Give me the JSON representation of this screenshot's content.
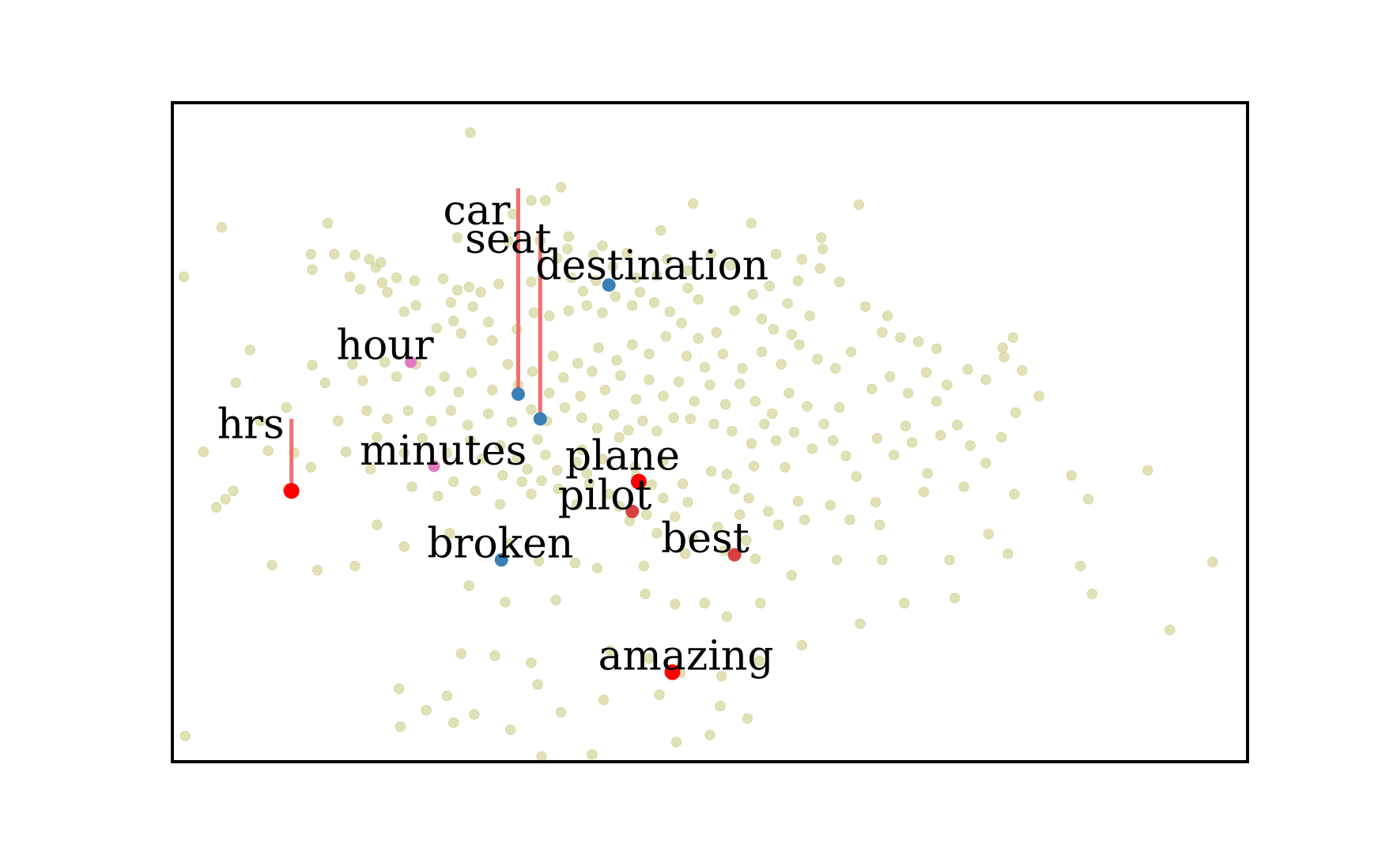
{
  "chart_data": {
    "type": "scatter",
    "title": "",
    "xlabel": "",
    "ylabel": "",
    "xlim": [
      -3.1,
      5.2
    ],
    "ylim": [
      -3.0,
      3.4
    ],
    "grid": false,
    "axes_ticks": false,
    "colors": {
      "background": "#c8c87a",
      "blue": "#3a7fb6",
      "pink": "#e07ac0",
      "red": "#ff0000",
      "darkred": "#d94040",
      "stem": "#f07070",
      "frame": "#000000"
    },
    "background_points": [
      [
        -0.8,
        3.11
      ],
      [
        -0.1,
        2.58
      ],
      [
        -0.22,
        2.45
      ],
      [
        -0.33,
        2.45
      ],
      [
        -0.47,
        2.32
      ],
      [
        -1.9,
        2.23
      ],
      [
        -2.72,
        2.19
      ],
      [
        -0.9,
        2.09
      ],
      [
        -0.26,
        2.06
      ],
      [
        -0.51,
        2.06
      ],
      [
        -0.04,
        2.1
      ],
      [
        -0.05,
        1.98
      ],
      [
        -2.03,
        1.93
      ],
      [
        -1.85,
        1.93
      ],
      [
        -1.69,
        1.92
      ],
      [
        -1.58,
        1.88
      ],
      [
        -1.49,
        1.85
      ],
      [
        -1.53,
        1.8
      ],
      [
        -0.13,
        1.89
      ],
      [
        -0.33,
        1.66
      ],
      [
        -1.48,
        1.65
      ],
      [
        -1.23,
        1.67
      ],
      [
        -2.02,
        1.78
      ],
      [
        -1.73,
        1.71
      ],
      [
        -1.01,
        1.69
      ],
      [
        -0.58,
        1.64
      ],
      [
        -0.72,
        1.56
      ],
      [
        -0.81,
        1.61
      ],
      [
        -0.9,
        1.58
      ],
      [
        -1.37,
        1.7
      ],
      [
        -1.65,
        1.59
      ],
      [
        -1.44,
        1.56
      ],
      [
        -3.01,
        1.71
      ],
      [
        -1.22,
        1.43
      ],
      [
        -1.31,
        1.37
      ],
      [
        -0.95,
        1.46
      ],
      [
        -0.78,
        1.42
      ],
      [
        -0.93,
        1.28
      ],
      [
        -1.06,
        1.21
      ],
      [
        -0.87,
        1.16
      ],
      [
        -0.63,
        1.09
      ],
      [
        -0.66,
        1.27
      ],
      [
        -0.44,
        1.2
      ],
      [
        -0.31,
        1.36
      ],
      [
        -0.19,
        1.33
      ],
      [
        -0.04,
        1.38
      ],
      [
        0.1,
        1.43
      ],
      [
        0.22,
        1.36
      ],
      [
        0.32,
        1.52
      ],
      [
        0.45,
        1.43
      ],
      [
        0.51,
        1.56
      ],
      [
        0.62,
        1.46
      ],
      [
        0.74,
        1.37
      ],
      [
        0.83,
        1.26
      ],
      [
        0.96,
        1.11
      ],
      [
        1.1,
        1.17
      ],
      [
        1.24,
        1.38
      ],
      [
        1.38,
        1.54
      ],
      [
        1.51,
        1.62
      ],
      [
        1.65,
        1.45
      ],
      [
        1.73,
        1.67
      ],
      [
        1.9,
        1.79
      ],
      [
        2.05,
        1.66
      ],
      [
        2.25,
        1.42
      ],
      [
        2.38,
        1.17
      ],
      [
        2.52,
        1.12
      ],
      [
        2.66,
        1.08
      ],
      [
        2.8,
        1.01
      ],
      [
        1.56,
        1.93
      ],
      [
        1.76,
        1.88
      ],
      [
        1.91,
        2.09
      ],
      [
        1.92,
        1.98
      ],
      [
        2.2,
        2.41
      ],
      [
        0.67,
        2.16
      ],
      [
        0.92,
        2.42
      ],
      [
        1.37,
        2.23
      ],
      [
        0.22,
        2.01
      ],
      [
        0.41,
        1.94
      ],
      [
        0.3,
        1.81
      ],
      [
        0.15,
        1.92
      ],
      [
        0.64,
        1.72
      ],
      [
        0.72,
        1.88
      ],
      [
        0.48,
        1.7
      ],
      [
        0.88,
        1.77
      ],
      [
        1.06,
        1.93
      ],
      [
        1.21,
        1.82
      ],
      [
        -2.5,
        1.0
      ],
      [
        -2.02,
        0.85
      ],
      [
        -1.92,
        0.68
      ],
      [
        -1.71,
        0.86
      ],
      [
        -1.63,
        0.7
      ],
      [
        -1.46,
        0.88
      ],
      [
        -1.37,
        0.74
      ],
      [
        -1.22,
        0.86
      ],
      [
        -1.11,
        0.6
      ],
      [
        -1.0,
        0.74
      ],
      [
        -0.89,
        0.59
      ],
      [
        -0.79,
        0.78
      ],
      [
        -0.63,
        0.61
      ],
      [
        -0.51,
        0.86
      ],
      [
        -0.43,
        0.66
      ],
      [
        -0.32,
        0.79
      ],
      [
        -0.19,
        0.58
      ],
      [
        -0.08,
        0.73
      ],
      [
        0.05,
        0.55
      ],
      [
        0.14,
        0.79
      ],
      [
        0.24,
        0.61
      ],
      [
        0.36,
        0.75
      ],
      [
        0.48,
        0.52
      ],
      [
        0.58,
        0.71
      ],
      [
        0.69,
        0.55
      ],
      [
        0.81,
        0.69
      ],
      [
        0.93,
        0.5
      ],
      [
        1.05,
        0.66
      ],
      [
        1.17,
        0.47
      ],
      [
        1.28,
        0.67
      ],
      [
        1.4,
        0.5
      ],
      [
        1.53,
        0.38
      ],
      [
        1.66,
        0.58
      ],
      [
        1.8,
        0.45
      ],
      [
        1.93,
        0.28
      ],
      [
        2.05,
        0.44
      ],
      [
        2.34,
        0.14
      ],
      [
        2.56,
        0.26
      ],
      [
        2.8,
        0.5
      ],
      [
        3.59,
        0.55
      ],
      [
        -0.28,
        0.13
      ],
      [
        0.06,
        0.03
      ],
      [
        0.35,
        0.15
      ],
      [
        0.53,
        0.31
      ],
      [
        0.9,
        0.33
      ],
      [
        1.08,
        0.28
      ],
      [
        1.22,
        0.21
      ],
      [
        1.37,
        0.09
      ],
      [
        1.39,
        -0.13
      ],
      [
        1.63,
        -0.14
      ],
      [
        1.84,
        0.04
      ],
      [
        0.27,
        -0.4
      ],
      [
        0.48,
        -0.23
      ],
      [
        0.69,
        -0.08
      ],
      [
        0.84,
        -0.3
      ],
      [
        1.06,
        -0.18
      ],
      [
        1.24,
        -0.35
      ],
      [
        -1.76,
        0.01
      ],
      [
        -1.52,
        0.15
      ],
      [
        -1.31,
        0.0
      ],
      [
        -1.17,
        0.14
      ],
      [
        -0.98,
        0.0
      ],
      [
        -0.8,
        0.12
      ],
      [
        -0.71,
        -0.06
      ],
      [
        -0.57,
        0.07
      ],
      [
        -0.44,
        -0.05
      ],
      [
        -0.36,
        -0.16
      ],
      [
        -0.22,
        -0.02
      ],
      [
        -0.13,
        -0.17
      ],
      [
        0.02,
        -0.09
      ],
      [
        0.1,
        -0.2
      ],
      [
        0.22,
        -0.06
      ],
      [
        -2.36,
        0.02
      ],
      [
        -2.16,
        0.0
      ],
      [
        -2.03,
        -0.14
      ],
      [
        -2.86,
        0.01
      ],
      [
        -2.63,
        -0.37
      ],
      [
        -2.76,
        -0.53
      ],
      [
        -2.69,
        -0.45
      ],
      [
        -2.21,
        -0.35
      ],
      [
        -1.57,
        -0.16
      ],
      [
        -1.25,
        -0.33
      ],
      [
        -1.05,
        -0.42
      ],
      [
        -0.93,
        -0.28
      ],
      [
        -0.76,
        -0.37
      ],
      [
        -0.57,
        -0.5
      ],
      [
        -0.33,
        -0.4
      ],
      [
        -0.12,
        -0.35
      ],
      [
        0.02,
        -0.5
      ],
      [
        0.12,
        -0.3
      ],
      [
        0.35,
        -0.52
      ],
      [
        0.56,
        -0.6
      ],
      [
        0.69,
        -0.44
      ],
      [
        0.88,
        -0.48
      ],
      [
        1.18,
        -0.21
      ],
      [
        1.35,
        -0.44
      ],
      [
        1.5,
        -0.57
      ],
      [
        1.78,
        -0.65
      ],
      [
        2.13,
        -0.65
      ],
      [
        2.36,
        -0.7
      ],
      [
        2.7,
        -0.38
      ],
      [
        3.01,
        -0.33
      ],
      [
        3.2,
        -0.79
      ],
      [
        3.4,
        -0.4
      ],
      [
        3.84,
        -0.22
      ],
      [
        3.97,
        -0.45
      ],
      [
        4.43,
        -0.17
      ],
      [
        -1.52,
        -0.7
      ],
      [
        -1.31,
        -0.91
      ],
      [
        -0.96,
        -0.78
      ],
      [
        -0.5,
        -0.88
      ],
      [
        -0.27,
        -1.05
      ],
      [
        0.01,
        -1.07
      ],
      [
        0.18,
        -1.12
      ],
      [
        0.54,
        -1.1
      ],
      [
        0.86,
        -0.98
      ],
      [
        1.16,
        -0.95
      ],
      [
        1.4,
        -1.03
      ],
      [
        1.68,
        -1.19
      ],
      [
        2.03,
        -1.04
      ],
      [
        2.38,
        -1.04
      ],
      [
        2.9,
        -1.04
      ],
      [
        3.35,
        -0.98
      ],
      [
        3.91,
        -1.1
      ],
      [
        4.93,
        -1.06
      ],
      [
        -2.33,
        -1.09
      ],
      [
        -1.98,
        -1.14
      ],
      [
        -1.69,
        -1.1
      ],
      [
        -0.81,
        -1.29
      ],
      [
        -0.53,
        -1.45
      ],
      [
        -0.14,
        -1.43
      ],
      [
        0.55,
        -1.37
      ],
      [
        0.78,
        -1.47
      ],
      [
        1.01,
        -1.46
      ],
      [
        1.18,
        -1.59
      ],
      [
        1.44,
        -1.46
      ],
      [
        2.21,
        -1.66
      ],
      [
        2.55,
        -1.46
      ],
      [
        2.94,
        -1.41
      ],
      [
        4.0,
        -1.37
      ],
      [
        -0.87,
        -1.95
      ],
      [
        -0.61,
        -1.97
      ],
      [
        -0.33,
        -2.04
      ],
      [
        0.28,
        -1.92
      ],
      [
        0.58,
        -2.0
      ],
      [
        0.82,
        -2.14
      ],
      [
        1.14,
        -2.17
      ],
      [
        1.43,
        -2.02
      ],
      [
        1.76,
        -1.87
      ],
      [
        -1.35,
        -2.29
      ],
      [
        -0.98,
        -2.36
      ],
      [
        1.13,
        -2.46
      ],
      [
        0.66,
        -2.35
      ],
      [
        -0.77,
        -2.54
      ],
      [
        0.23,
        -2.4
      ],
      [
        -0.28,
        -2.25
      ],
      [
        -1.34,
        -2.66
      ],
      [
        -1.14,
        -2.5
      ],
      [
        -0.93,
        -2.62
      ],
      [
        0.79,
        -2.81
      ],
      [
        -0.1,
        -2.52
      ],
      [
        -0.49,
        -2.69
      ],
      [
        -3.0,
        -2.75
      ],
      [
        -0.25,
        -2.95
      ],
      [
        0.14,
        -2.93
      ],
      [
        1.05,
        -2.74
      ],
      [
        1.34,
        -2.58
      ],
      [
        4.6,
        -1.72
      ],
      [
        0.43,
        -0.66
      ],
      [
        0.64,
        -0.78
      ],
      [
        0.78,
        -0.62
      ],
      [
        0.92,
        -0.83
      ],
      [
        1.11,
        -0.72
      ],
      [
        1.28,
        -0.6
      ],
      [
        1.33,
        -0.85
      ],
      [
        1.58,
        -0.7
      ],
      [
        1.73,
        -0.47
      ],
      [
        1.98,
        -0.51
      ],
      [
        2.18,
        -0.23
      ],
      [
        2.33,
        -0.48
      ],
      [
        2.47,
        -0.02
      ],
      [
        2.61,
        0.1
      ],
      [
        2.73,
        -0.2
      ],
      [
        2.83,
        0.17
      ],
      [
        2.96,
        0.27
      ],
      [
        3.06,
        0.07
      ],
      [
        3.18,
        -0.1
      ],
      [
        3.3,
        0.15
      ],
      [
        3.41,
        0.39
      ],
      [
        -0.16,
        0.94
      ],
      [
        0.03,
        0.87
      ],
      [
        0.19,
        1.02
      ],
      [
        0.33,
        0.9
      ],
      [
        0.45,
        1.05
      ],
      [
        0.58,
        0.96
      ],
      [
        0.71,
        1.13
      ],
      [
        0.87,
        0.94
      ],
      [
        1.01,
        0.83
      ],
      [
        1.15,
        0.96
      ],
      [
        1.3,
        0.82
      ],
      [
        1.45,
        0.98
      ],
      [
        1.6,
        0.86
      ],
      [
        1.74,
        1.05
      ],
      [
        1.88,
        0.91
      ],
      [
        2.02,
        0.82
      ],
      [
        2.14,
        0.98
      ],
      [
        -0.33,
        0.42
      ],
      [
        -0.21,
        0.31
      ],
      [
        -0.07,
        0.44
      ],
      [
        0.06,
        0.34
      ],
      [
        0.18,
        0.24
      ],
      [
        0.31,
        0.37
      ],
      [
        0.42,
        0.22
      ],
      [
        0.64,
        0.21
      ],
      [
        0.77,
        0.34
      ],
      [
        -0.48,
        0.3
      ],
      [
        -0.66,
        0.38
      ],
      [
        -0.82,
        0.27
      ],
      [
        -0.95,
        0.41
      ],
      [
        -1.1,
        0.31
      ],
      [
        -1.28,
        0.41
      ],
      [
        -1.44,
        0.33
      ],
      [
        2.3,
        0.62
      ],
      [
        2.44,
        0.74
      ],
      [
        2.58,
        0.58
      ],
      [
        2.72,
        0.78
      ],
      [
        2.88,
        0.66
      ],
      [
        3.04,
        0.81
      ],
      [
        3.18,
        0.71
      ],
      [
        3.32,
        0.93
      ],
      [
        3.46,
        0.8
      ],
      [
        -0.55,
        -0.22
      ],
      [
        -0.4,
        -0.28
      ],
      [
        -0.25,
        -0.27
      ],
      [
        0.47,
        -0.14
      ],
      [
        0.6,
        -0.31
      ],
      [
        1.47,
        0.28
      ],
      [
        1.56,
        0.12
      ],
      [
        1.7,
        0.2
      ],
      [
        2.0,
        0.12
      ],
      [
        2.1,
        -0.03
      ],
      [
        -1.6,
        0.41
      ],
      [
        -1.82,
        0.31
      ],
      [
        -2.22,
        0.44
      ],
      [
        -2.42,
        0.31
      ],
      [
        -2.61,
        0.68
      ],
      [
        -0.02,
        1.7
      ],
      [
        0.07,
        1.57
      ],
      [
        0.17,
        1.67
      ],
      [
        0.88,
        1.6
      ],
      [
        0.96,
        1.49
      ],
      [
        1.45,
        1.3
      ],
      [
        1.54,
        1.2
      ],
      [
        1.68,
        1.15
      ],
      [
        1.82,
        1.33
      ],
      [
        2.42,
        1.33
      ],
      [
        3.31,
        1.02
      ],
      [
        3.39,
        1.12
      ]
    ],
    "highlighted_points": [
      {
        "word": "car",
        "x": -0.43,
        "y": 0.57,
        "color": "#3a7fb6",
        "stem_top": 2.57,
        "size": "medium"
      },
      {
        "word": "seat",
        "x": -0.26,
        "y": 0.33,
        "color": "#3a7fb6",
        "stem_top": 2.13,
        "size": "medium"
      },
      {
        "word": "destination",
        "x": 0.27,
        "y": 1.63,
        "color": "#3a7fb6",
        "size": "medium"
      },
      {
        "word": "hour",
        "x": -1.26,
        "y": 0.88,
        "color": "#e07ac0",
        "size": "small"
      },
      {
        "word": "hrs",
        "x": -2.18,
        "y": -0.37,
        "color": "#ff0000",
        "stem_top": 0.33,
        "size": "large"
      },
      {
        "word": "minutes",
        "x": -1.08,
        "y": -0.13,
        "color": "#e07ac0",
        "size": "small"
      },
      {
        "word": "plane",
        "x": 0.5,
        "y": -0.28,
        "color": "#ff0000",
        "size": "large"
      },
      {
        "word": "pilot",
        "x": 0.45,
        "y": -0.57,
        "color": "#d94040",
        "size": "medium"
      },
      {
        "word": "best",
        "x": 1.24,
        "y": -0.99,
        "color": "#d94040",
        "size": "medium"
      },
      {
        "word": "broken",
        "x": -0.56,
        "y": -1.04,
        "color": "#3a7fb6",
        "size": "medium"
      },
      {
        "word": "amazing",
        "x": 0.76,
        "y": -2.13,
        "color": "#ff0000",
        "size": "large"
      }
    ]
  }
}
